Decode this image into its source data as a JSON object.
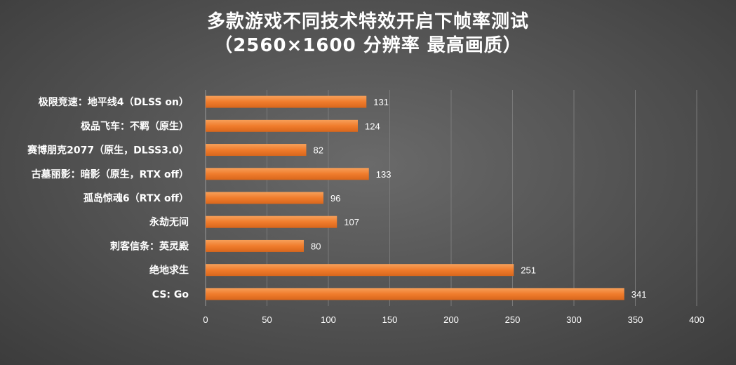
{
  "chart_data": {
    "type": "bar",
    "orientation": "horizontal",
    "title": "多款游戏不同技术特效开启下帧率测试",
    "subtitle": "（2560×1600 分辨率 最高画质）",
    "categories": [
      "极限竞速：地平线4（DLSS on）",
      "极品飞车：不羁（原生）",
      "赛博朋克2077（原生，DLSS3.0）",
      "古墓丽影：暗影（原生，RTX off）",
      "孤岛惊魂6（RTX off）",
      "永劫无间",
      "刺客信条：英灵殿",
      "绝地求生",
      "CS: Go"
    ],
    "values": [
      131,
      124,
      82,
      133,
      96,
      107,
      80,
      251,
      341
    ],
    "xlim": [
      0,
      400
    ],
    "xticks": [
      0,
      50,
      100,
      150,
      200,
      250,
      300,
      350,
      400
    ],
    "grid": true,
    "legend": "none",
    "bar_color": "#f07c2c",
    "bar_color_light": "#f7a05a",
    "grid_color": "#7a7a7a",
    "text_color": "#ffffff"
  }
}
